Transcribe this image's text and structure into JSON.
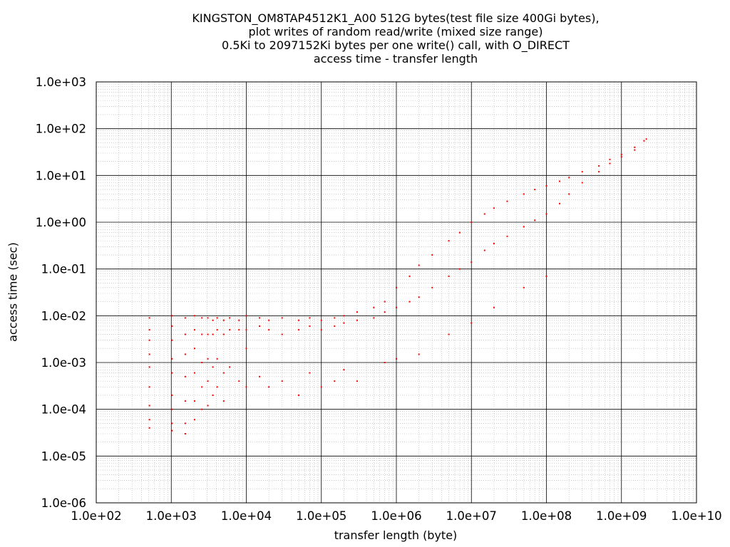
{
  "chart_data": {
    "type": "scatter",
    "title_lines": [
      "KINGSTON_OM8TAP4512K1_A00 512G bytes(test file size 400Gi bytes),",
      "plot writes of random read/write (mixed size range)",
      "0.5Ki to 2097152Ki bytes per one write() call, with O_DIRECT",
      "access time - transfer length"
    ],
    "xlabel": "transfer length (byte)",
    "ylabel": "access time (sec)",
    "x_scale": "log",
    "y_scale": "log",
    "xlim": [
      100,
      10000000000
    ],
    "ylim": [
      1e-06,
      1000
    ],
    "x_ticks": [
      "1.0e+02",
      "1.0e+03",
      "1.0e+04",
      "1.0e+05",
      "1.0e+06",
      "1.0e+07",
      "1.0e+08",
      "1.0e+09",
      "1.0e+10"
    ],
    "y_ticks": [
      "1.0e+03",
      "1.0e+02",
      "1.0e+01",
      "1.0e+00",
      "1.0e-01",
      "1.0e-02",
      "1.0e-03",
      "1.0e-04",
      "1.0e-05",
      "1.0e-06"
    ],
    "grid": true,
    "point_color": "#ff0000",
    "series": [
      {
        "points": [
          [
            512,
            0.009
          ],
          [
            512,
            0.005
          ],
          [
            512,
            0.003
          ],
          [
            512,
            0.0015
          ],
          [
            512,
            0.0008
          ],
          [
            512,
            0.0003
          ],
          [
            512,
            0.00012
          ],
          [
            512,
            6e-05
          ],
          [
            512,
            4e-05
          ],
          [
            1024,
            0.01
          ],
          [
            1024,
            0.006
          ],
          [
            1024,
            0.003
          ],
          [
            1024,
            0.0012
          ],
          [
            1024,
            0.0006
          ],
          [
            1024,
            0.0002
          ],
          [
            1024,
            0.0001
          ],
          [
            1024,
            5e-05
          ],
          [
            1024,
            3.5e-05
          ],
          [
            1536,
            0.009
          ],
          [
            1536,
            0.004
          ],
          [
            1536,
            0.0015
          ],
          [
            1536,
            0.0005
          ],
          [
            1536,
            0.00015
          ],
          [
            1536,
            5e-05
          ],
          [
            1536,
            3e-05
          ],
          [
            2048,
            0.01
          ],
          [
            2048,
            0.005
          ],
          [
            2048,
            0.002
          ],
          [
            2048,
            0.0006
          ],
          [
            2048,
            0.00015
          ],
          [
            2048,
            6e-05
          ],
          [
            2560,
            0.009
          ],
          [
            2560,
            0.004
          ],
          [
            2560,
            0.001
          ],
          [
            2560,
            0.0003
          ],
          [
            2560,
            0.0001
          ],
          [
            3072,
            0.009
          ],
          [
            3072,
            0.004
          ],
          [
            3072,
            0.0012
          ],
          [
            3072,
            0.0004
          ],
          [
            3072,
            0.00012
          ],
          [
            3584,
            0.008
          ],
          [
            3584,
            0.004
          ],
          [
            3584,
            0.0008
          ],
          [
            3584,
            0.0002
          ],
          [
            4096,
            0.009
          ],
          [
            4096,
            0.005
          ],
          [
            4096,
            0.0012
          ],
          [
            4096,
            0.0003
          ],
          [
            5000,
            0.008
          ],
          [
            5000,
            0.004
          ],
          [
            5000,
            0.0006
          ],
          [
            5000,
            0.00015
          ],
          [
            6000,
            0.009
          ],
          [
            6000,
            0.005
          ],
          [
            6000,
            0.0008
          ],
          [
            8000,
            0.008
          ],
          [
            8000,
            0.005
          ],
          [
            8000,
            0.0004
          ],
          [
            10000,
            0.01
          ],
          [
            10000,
            0.005
          ],
          [
            10000,
            0.002
          ],
          [
            10000,
            0.0003
          ],
          [
            15000,
            0.009
          ],
          [
            15000,
            0.006
          ],
          [
            15000,
            0.0005
          ],
          [
            20000,
            0.008
          ],
          [
            20000,
            0.005
          ],
          [
            20000,
            0.0003
          ],
          [
            30000,
            0.009
          ],
          [
            30000,
            0.004
          ],
          [
            30000,
            0.0004
          ],
          [
            50000,
            0.008
          ],
          [
            50000,
            0.005
          ],
          [
            50000,
            0.0002
          ],
          [
            70000,
            0.009
          ],
          [
            70000,
            0.006
          ],
          [
            70000,
            0.0006
          ],
          [
            100000,
            0.008
          ],
          [
            100000,
            0.005
          ],
          [
            100000,
            0.0003
          ],
          [
            150000,
            0.009
          ],
          [
            150000,
            0.006
          ],
          [
            150000,
            0.0004
          ],
          [
            200000,
            0.01
          ],
          [
            200000,
            0.007
          ],
          [
            200000,
            0.0007
          ],
          [
            300000,
            0.012
          ],
          [
            300000,
            0.008
          ],
          [
            300000,
            0.0004
          ],
          [
            500000,
            0.015
          ],
          [
            500000,
            0.009
          ],
          [
            700000,
            0.02
          ],
          [
            700000,
            0.012
          ],
          [
            700000,
            0.001
          ],
          [
            1000000,
            0.04
          ],
          [
            1000000,
            0.015
          ],
          [
            1000000,
            0.0012
          ],
          [
            1500000,
            0.07
          ],
          [
            1500000,
            0.02
          ],
          [
            2000000,
            0.12
          ],
          [
            2000000,
            0.025
          ],
          [
            2000000,
            0.0015
          ],
          [
            3000000,
            0.2
          ],
          [
            3000000,
            0.04
          ],
          [
            5000000,
            0.4
          ],
          [
            5000000,
            0.07
          ],
          [
            5000000,
            0.004
          ],
          [
            7000000,
            0.6
          ],
          [
            7000000,
            0.1
          ],
          [
            10000000,
            1.0
          ],
          [
            10000000,
            0.14
          ],
          [
            10000000,
            0.007
          ],
          [
            15000000,
            1.5
          ],
          [
            15000000,
            0.25
          ],
          [
            20000000,
            2.0
          ],
          [
            20000000,
            0.35
          ],
          [
            20000000,
            0.015
          ],
          [
            30000000,
            2.8
          ],
          [
            30000000,
            0.5
          ],
          [
            50000000,
            4.0
          ],
          [
            50000000,
            0.8
          ],
          [
            50000000,
            0.04
          ],
          [
            70000000,
            5.0
          ],
          [
            70000000,
            1.1
          ],
          [
            100000000,
            6.0
          ],
          [
            100000000,
            1.5
          ],
          [
            100000000,
            0.07
          ],
          [
            150000000,
            7.5
          ],
          [
            150000000,
            2.5
          ],
          [
            200000000,
            9.0
          ],
          [
            200000000,
            4.0
          ],
          [
            300000000,
            12
          ],
          [
            300000000,
            7
          ],
          [
            500000000,
            16
          ],
          [
            500000000,
            12
          ],
          [
            700000000,
            22
          ],
          [
            700000000,
            18
          ],
          [
            1000000000,
            28
          ],
          [
            1000000000,
            25
          ],
          [
            1500000000,
            40
          ],
          [
            1500000000,
            35
          ],
          [
            2000000000,
            55
          ],
          [
            2147483648,
            60
          ]
        ]
      }
    ]
  }
}
